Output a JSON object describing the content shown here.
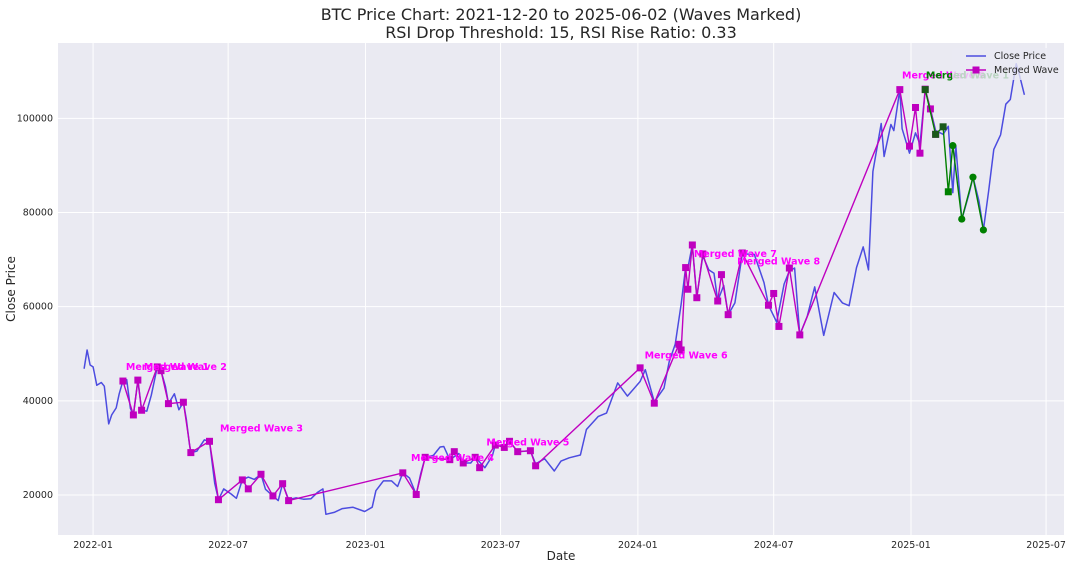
{
  "chart_data": {
    "type": "line",
    "title": "BTC Price Chart: 2021-12-20 to 2025-06-02 (Waves Marked)",
    "subtitle": "RSI Drop Threshold: 15, RSI Rise Ratio: 0.33",
    "xlabel": "Date",
    "ylabel": "Close Price",
    "xlim": [
      "2021-11-15",
      "2025-07-25"
    ],
    "ylim": [
      11500,
      116000
    ],
    "x_ticks": [
      "2022-01",
      "2022-07",
      "2023-01",
      "2023-07",
      "2024-01",
      "2024-07",
      "2025-01",
      "2025-07"
    ],
    "y_ticks": [
      20000,
      40000,
      60000,
      80000,
      100000
    ],
    "grid": true,
    "legend_position": "top-right",
    "colors": {
      "background": "#eaeaf2",
      "close_price": "#4c4ce0",
      "merged_wave": "#bf00bf",
      "green_wave": "#008000",
      "wave_label": "#ff00ff",
      "green_label": "#008000"
    },
    "series": [
      {
        "name": "Close Price",
        "points": [
          [
            "2021-12-20",
            46800
          ],
          [
            "2021-12-24",
            50800
          ],
          [
            "2021-12-28",
            47600
          ],
          [
            "2022-01-01",
            47200
          ],
          [
            "2022-01-06",
            43300
          ],
          [
            "2022-01-12",
            43900
          ],
          [
            "2022-01-16",
            43100
          ],
          [
            "2022-01-22",
            35100
          ],
          [
            "2022-01-26",
            37000
          ],
          [
            "2022-02-01",
            38500
          ],
          [
            "2022-02-05",
            41500
          ],
          [
            "2022-02-10",
            44200
          ],
          [
            "2022-02-15",
            44500
          ],
          [
            "2022-02-20",
            38400
          ],
          [
            "2022-02-24",
            37000
          ],
          [
            "2022-03-02",
            44400
          ],
          [
            "2022-03-07",
            38000
          ],
          [
            "2022-03-14",
            37800
          ],
          [
            "2022-03-20",
            41200
          ],
          [
            "2022-03-28",
            47200
          ],
          [
            "2022-04-02",
            46400
          ],
          [
            "2022-04-08",
            43000
          ],
          [
            "2022-04-12",
            39400
          ],
          [
            "2022-04-20",
            41500
          ],
          [
            "2022-04-26",
            38100
          ],
          [
            "2022-05-02",
            39700
          ],
          [
            "2022-05-06",
            36000
          ],
          [
            "2022-05-10",
            31000
          ],
          [
            "2022-05-12",
            29000
          ],
          [
            "2022-05-20",
            29300
          ],
          [
            "2022-05-30",
            31700
          ],
          [
            "2022-06-06",
            31400
          ],
          [
            "2022-06-13",
            22500
          ],
          [
            "2022-06-18",
            19000
          ],
          [
            "2022-06-25",
            21300
          ],
          [
            "2022-07-05",
            20200
          ],
          [
            "2022-07-12",
            19300
          ],
          [
            "2022-07-20",
            23200
          ],
          [
            "2022-07-28",
            23800
          ],
          [
            "2022-08-05",
            23300
          ],
          [
            "2022-08-14",
            24400
          ],
          [
            "2022-08-20",
            21200
          ],
          [
            "2022-08-30",
            19800
          ],
          [
            "2022-09-06",
            18800
          ],
          [
            "2022-09-12",
            22400
          ],
          [
            "2022-09-20",
            19000
          ],
          [
            "2022-09-30",
            19400
          ],
          [
            "2022-10-10",
            19100
          ],
          [
            "2022-10-20",
            19200
          ],
          [
            "2022-10-29",
            20600
          ],
          [
            "2022-11-05",
            21300
          ],
          [
            "2022-11-09",
            15900
          ],
          [
            "2022-11-20",
            16300
          ],
          [
            "2022-12-01",
            17100
          ],
          [
            "2022-12-15",
            17400
          ],
          [
            "2022-12-31",
            16500
          ],
          [
            "2023-01-10",
            17400
          ],
          [
            "2023-01-15",
            20900
          ],
          [
            "2023-01-25",
            23000
          ],
          [
            "2023-02-05",
            23000
          ],
          [
            "2023-02-13",
            21800
          ],
          [
            "2023-02-20",
            24700
          ],
          [
            "2023-03-01",
            23600
          ],
          [
            "2023-03-10",
            20100
          ],
          [
            "2023-03-16",
            24500
          ],
          [
            "2023-03-22",
            28000
          ],
          [
            "2023-04-02",
            28400
          ],
          [
            "2023-04-11",
            30200
          ],
          [
            "2023-04-16",
            30300
          ],
          [
            "2023-04-24",
            27500
          ],
          [
            "2023-05-06",
            28800
          ],
          [
            "2023-05-12",
            26800
          ],
          [
            "2023-05-22",
            26800
          ],
          [
            "2023-05-28",
            28000
          ],
          [
            "2023-06-10",
            25800
          ],
          [
            "2023-06-20",
            28300
          ],
          [
            "2023-06-24",
            30600
          ],
          [
            "2023-07-06",
            30400
          ],
          [
            "2023-07-13",
            31400
          ],
          [
            "2023-07-24",
            29200
          ],
          [
            "2023-08-10",
            29400
          ],
          [
            "2023-08-17",
            26600
          ],
          [
            "2023-08-29",
            27700
          ],
          [
            "2023-09-11",
            25100
          ],
          [
            "2023-09-20",
            27200
          ],
          [
            "2023-10-01",
            27900
          ],
          [
            "2023-10-16",
            28500
          ],
          [
            "2023-10-24",
            33900
          ],
          [
            "2023-11-09",
            36700
          ],
          [
            "2023-11-20",
            37400
          ],
          [
            "2023-12-05",
            43800
          ],
          [
            "2023-12-18",
            41000
          ],
          [
            "2024-01-04",
            44100
          ],
          [
            "2024-01-11",
            46600
          ],
          [
            "2024-01-23",
            39800
          ],
          [
            "2024-02-05",
            42700
          ],
          [
            "2024-02-12",
            48300
          ],
          [
            "2024-02-20",
            52000
          ],
          [
            "2024-02-28",
            60600
          ],
          [
            "2024-03-05",
            68300
          ],
          [
            "2024-03-08",
            68200
          ],
          [
            "2024-03-14",
            73100
          ],
          [
            "2024-03-20",
            62000
          ],
          [
            "2024-03-28",
            70800
          ],
          [
            "2024-04-05",
            67800
          ],
          [
            "2024-04-12",
            67100
          ],
          [
            "2024-04-17",
            61200
          ],
          [
            "2024-04-25",
            64500
          ],
          [
            "2024-05-01",
            58300
          ],
          [
            "2024-05-10",
            60800
          ],
          [
            "2024-05-20",
            71200
          ],
          [
            "2024-06-05",
            71100
          ],
          [
            "2024-06-18",
            65100
          ],
          [
            "2024-06-24",
            60300
          ],
          [
            "2024-07-05",
            56700
          ],
          [
            "2024-07-15",
            64800
          ],
          [
            "2024-07-22",
            67600
          ],
          [
            "2024-07-29",
            68200
          ],
          [
            "2024-08-05",
            54000
          ],
          [
            "2024-08-15",
            58000
          ],
          [
            "2024-08-25",
            64200
          ],
          [
            "2024-09-06",
            53900
          ],
          [
            "2024-09-20",
            63000
          ],
          [
            "2024-10-01",
            60800
          ],
          [
            "2024-10-10",
            60200
          ],
          [
            "2024-10-20",
            68300
          ],
          [
            "2024-10-29",
            72700
          ],
          [
            "2024-11-05",
            67800
          ],
          [
            "2024-11-11",
            88700
          ],
          [
            "2024-11-22",
            98900
          ],
          [
            "2024-11-26",
            91900
          ],
          [
            "2024-12-05",
            98700
          ],
          [
            "2024-12-09",
            97400
          ],
          [
            "2024-12-17",
            106100
          ],
          [
            "2024-12-20",
            97800
          ],
          [
            "2024-12-30",
            92600
          ],
          [
            "2025-01-07",
            96900
          ],
          [
            "2025-01-13",
            94500
          ],
          [
            "2025-01-20",
            106100
          ],
          [
            "2025-01-27",
            102000
          ],
          [
            "2025-02-03",
            97400
          ],
          [
            "2025-02-13",
            96600
          ],
          [
            "2025-02-20",
            98300
          ],
          [
            "2025-02-26",
            84200
          ],
          [
            "2025-03-02",
            94200
          ],
          [
            "2025-03-10",
            78500
          ],
          [
            "2025-03-20",
            84100
          ],
          [
            "2025-03-25",
            87500
          ],
          [
            "2025-04-02",
            82500
          ],
          [
            "2025-04-08",
            76300
          ],
          [
            "2025-04-15",
            84500
          ],
          [
            "2025-04-22",
            93400
          ],
          [
            "2025-05-01",
            96500
          ],
          [
            "2025-05-08",
            103000
          ],
          [
            "2025-05-14",
            104000
          ],
          [
            "2025-05-22",
            111600
          ],
          [
            "2025-05-26",
            109400
          ],
          [
            "2025-06-02",
            105000
          ]
        ]
      },
      {
        "name": "Merged Wave",
        "points": [
          [
            "2022-02-10",
            44200
          ],
          [
            "2022-02-24",
            37000
          ],
          [
            "2022-03-02",
            44400
          ],
          [
            "2022-03-07",
            38000
          ],
          [
            "2022-03-28",
            47200
          ],
          [
            "2022-04-02",
            46400
          ],
          [
            "2022-04-12",
            39400
          ],
          [
            "2022-05-02",
            39700
          ],
          [
            "2022-05-12",
            29000
          ],
          [
            "2022-06-06",
            31400
          ],
          [
            "2022-06-18",
            19000
          ],
          [
            "2022-07-20",
            23200
          ],
          [
            "2022-07-28",
            21300
          ],
          [
            "2022-08-14",
            24400
          ],
          [
            "2022-08-30",
            19800
          ],
          [
            "2022-09-12",
            22400
          ],
          [
            "2022-09-20",
            18800
          ],
          [
            "2023-02-20",
            24700
          ],
          [
            "2023-03-10",
            20100
          ],
          [
            "2023-03-22",
            28000
          ],
          [
            "2023-04-24",
            27500
          ],
          [
            "2023-04-30",
            29200
          ],
          [
            "2023-05-12",
            26800
          ],
          [
            "2023-05-28",
            28000
          ],
          [
            "2023-06-03",
            25800
          ],
          [
            "2023-06-24",
            30600
          ],
          [
            "2023-07-06",
            30100
          ],
          [
            "2023-07-13",
            31400
          ],
          [
            "2023-07-24",
            29200
          ],
          [
            "2023-08-10",
            29400
          ],
          [
            "2023-08-17",
            26200
          ],
          [
            "2024-01-04",
            47000
          ],
          [
            "2024-01-23",
            39500
          ],
          [
            "2024-02-25",
            52000
          ],
          [
            "2024-02-28",
            50800
          ],
          [
            "2024-03-05",
            68300
          ],
          [
            "2024-03-08",
            63700
          ],
          [
            "2024-03-14",
            73100
          ],
          [
            "2024-03-20",
            61900
          ],
          [
            "2024-03-28",
            71200
          ],
          [
            "2024-04-17",
            61200
          ],
          [
            "2024-04-22",
            66800
          ],
          [
            "2024-05-01",
            58300
          ],
          [
            "2024-05-20",
            71400
          ],
          [
            "2024-06-24",
            60300
          ],
          [
            "2024-07-01",
            62800
          ],
          [
            "2024-07-08",
            55800
          ],
          [
            "2024-07-22",
            68200
          ],
          [
            "2024-08-05",
            54000
          ],
          [
            "2024-12-17",
            106100
          ],
          [
            "2024-12-30",
            94100
          ],
          [
            "2025-01-07",
            102300
          ],
          [
            "2025-01-13",
            92600
          ],
          [
            "2025-01-20",
            106200
          ],
          [
            "2025-01-27",
            102000
          ],
          [
            "2025-02-03",
            96600
          ]
        ]
      },
      {
        "name": "",
        "points": [
          [
            "2025-01-20",
            106100
          ],
          [
            "2025-02-03",
            96600
          ],
          [
            "2025-02-13",
            98200
          ],
          [
            "2025-02-20",
            84400
          ],
          [
            "2025-02-26",
            94200
          ],
          [
            "2025-03-10",
            78600
          ],
          [
            "2025-03-25",
            87500
          ],
          [
            "2025-04-08",
            76300
          ]
        ]
      }
    ],
    "annotations": [
      {
        "text": "Merged Wave 1",
        "x": "2022-02-14",
        "y": 46500
      },
      {
        "text": "Merged Wave 2",
        "x": "2022-03-10",
        "y": 46500
      },
      {
        "text": "Merged Wave 3",
        "x": "2022-06-20",
        "y": 33500
      },
      {
        "text": "Merged Wave 4",
        "x": "2023-03-03",
        "y": 27200
      },
      {
        "text": "Merged Wave 5",
        "x": "2023-06-12",
        "y": 30500
      },
      {
        "text": "Merged Wave 6",
        "x": "2024-01-10",
        "y": 49000
      },
      {
        "text": "Merged Wave 7",
        "x": "2024-03-16",
        "y": 70500
      },
      {
        "text": "Merged Wave 8",
        "x": "2024-05-13",
        "y": 69000
      },
      {
        "text": "Merged Wave 9",
        "x": "2024-12-20",
        "y": 108500
      },
      {
        "text": "Merged Wave 1",
        "x": "2025-01-21",
        "y": 108500,
        "color": "green"
      }
    ]
  }
}
